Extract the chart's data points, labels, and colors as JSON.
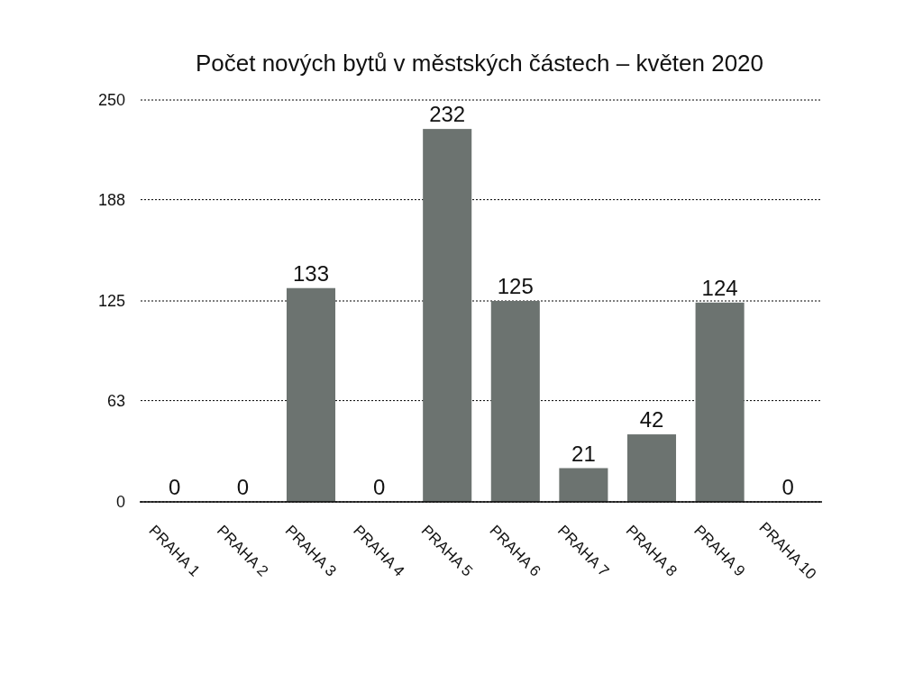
{
  "chart_data": {
    "type": "bar",
    "title": "Počet nových bytů v městských částech – květen 2020",
    "categories": [
      "PRAHA 1",
      "PRAHA 2",
      "PRAHA 3",
      "PRAHA 4",
      "PRAHA 5",
      "PRAHA 6",
      "PRAHA 7",
      "PRAHA 8",
      "PRAHA 9",
      "PRAHA 10"
    ],
    "values": [
      0,
      0,
      133,
      0,
      232,
      125,
      21,
      42,
      124,
      0
    ],
    "color": "#6c7370",
    "ylim": [
      0,
      250
    ],
    "yticks": [
      0,
      63,
      125,
      188,
      250
    ],
    "grid": "y",
    "data_labels": true
  }
}
